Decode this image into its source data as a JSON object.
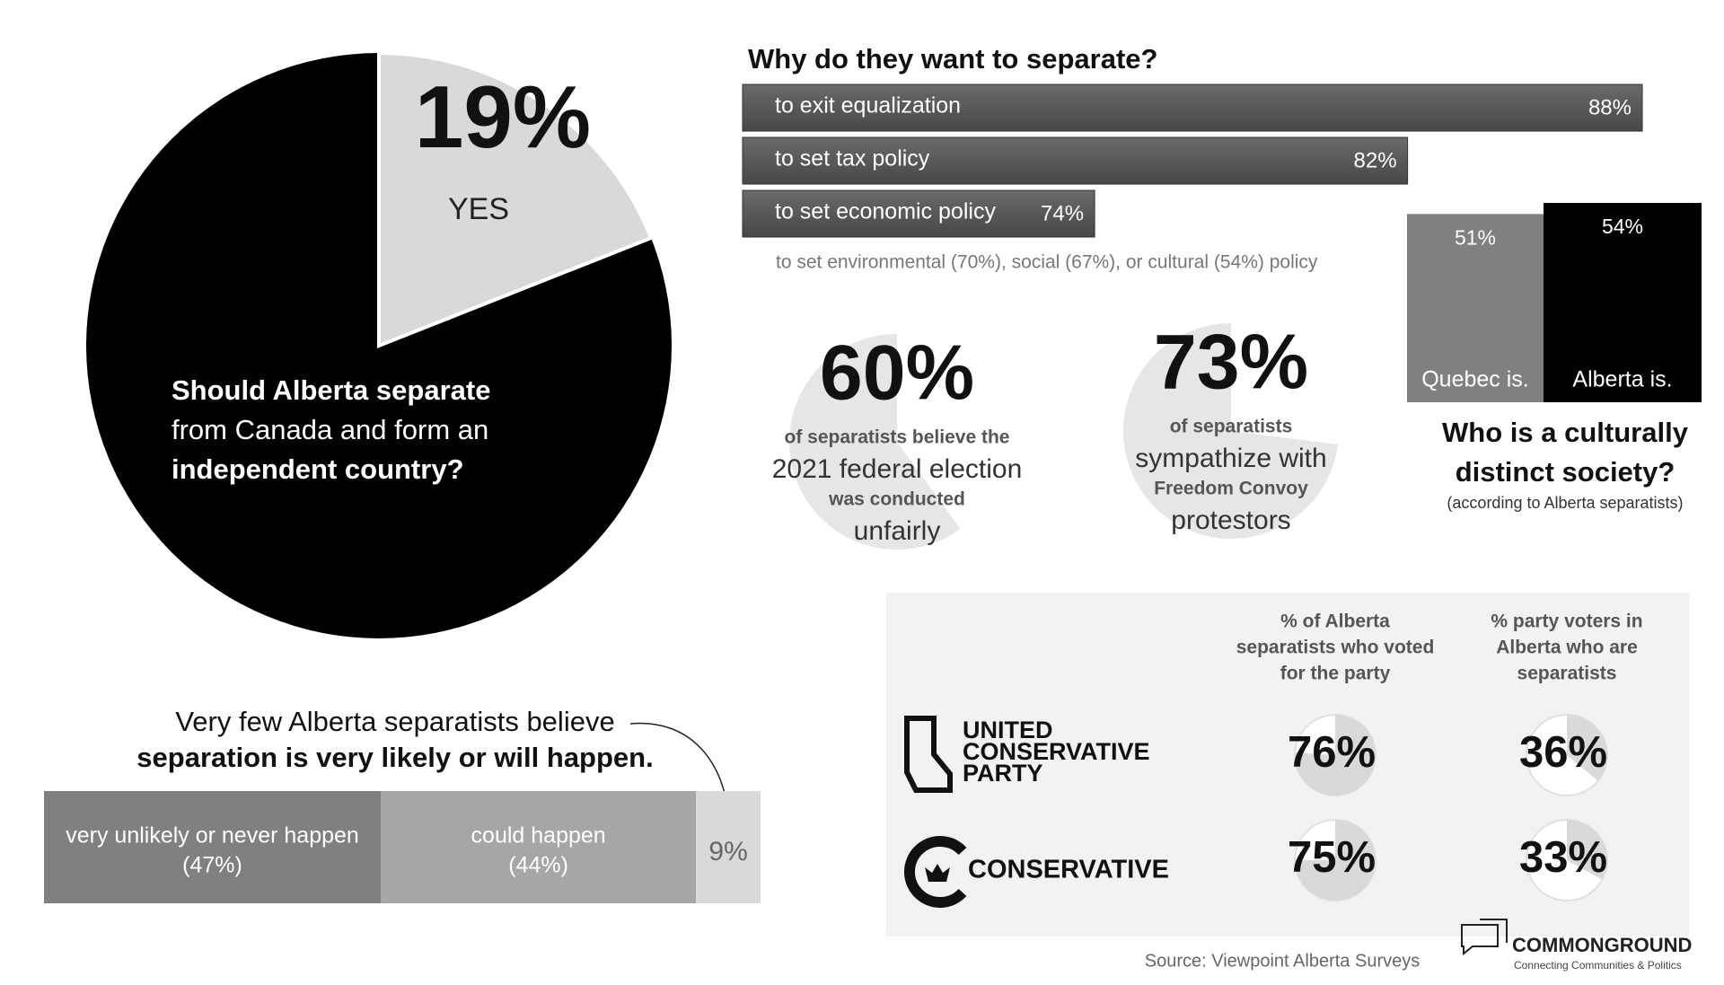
{
  "pie": {
    "type": "pie",
    "value": 19,
    "value_label": "19%",
    "label": "YES",
    "question": [
      "Should Alberta separate",
      "from Canada and form an",
      "independent country?"
    ]
  },
  "reasons": {
    "type": "bar",
    "title": "Why do they want to separate?",
    "categories": [
      "to exit equalization",
      "to set tax policy",
      "to set economic policy"
    ],
    "values": [
      88,
      82,
      74
    ],
    "value_labels": [
      "88%",
      "82%",
      "74%"
    ],
    "xlim": [
      65,
      88
    ],
    "note": "to set environmental (70%), social (67%), or cultural (54%) policy"
  },
  "distinct": {
    "type": "column",
    "categories": [
      "Quebec is.",
      "Alberta is."
    ],
    "values": [
      51,
      54
    ],
    "value_labels": [
      "51%",
      "54%"
    ],
    "colors": [
      "#808080",
      "#000000"
    ],
    "ylim": [
      0,
      54
    ],
    "title": [
      "Who is a culturally",
      "distinct society?"
    ],
    "subtitle": "(according to Alberta separatists)"
  },
  "stats": [
    {
      "value": 60,
      "value_label": "60%",
      "lines": [
        "of separatists believe the",
        "2021 federal election",
        "was conducted",
        "unfairly"
      ]
    },
    {
      "value": 73,
      "value_label": "73%",
      "lines": [
        "of separatists",
        "sympathize with",
        "Freedom Convoy",
        "protestors"
      ]
    }
  ],
  "likelihood": {
    "type": "stacked_bar",
    "title": [
      "Very few Alberta separatists believe",
      "separation is very likely or will happen."
    ],
    "categories": [
      "very unlikely or never happen",
      "could happen",
      null
    ],
    "values": [
      47,
      44,
      9
    ],
    "value_labels": [
      "(47%)",
      "(44%)",
      "9%"
    ],
    "colors": [
      "#808080",
      "#a6a6a6",
      "#d9d9d9"
    ]
  },
  "parties": {
    "columns": [
      [
        "% of Alberta",
        "separatists who voted",
        "for the party"
      ],
      [
        "% party voters in",
        "Alberta who are",
        "separatists"
      ]
    ],
    "rows": [
      {
        "name_lines": [
          "UNITED",
          "CONSERVATIVE",
          "PARTY"
        ],
        "values": [
          76,
          36
        ],
        "value_labels": [
          "76%",
          "36%"
        ]
      },
      {
        "name_lines": [
          "CONSERVATIVE"
        ],
        "values": [
          75,
          33
        ],
        "value_labels": [
          "75%",
          "33%"
        ]
      }
    ]
  },
  "source": "Source: Viewpoint Alberta Surveys",
  "brand": {
    "name": "COMMONGROUND",
    "tagline": "Connecting Communities & Politics"
  }
}
